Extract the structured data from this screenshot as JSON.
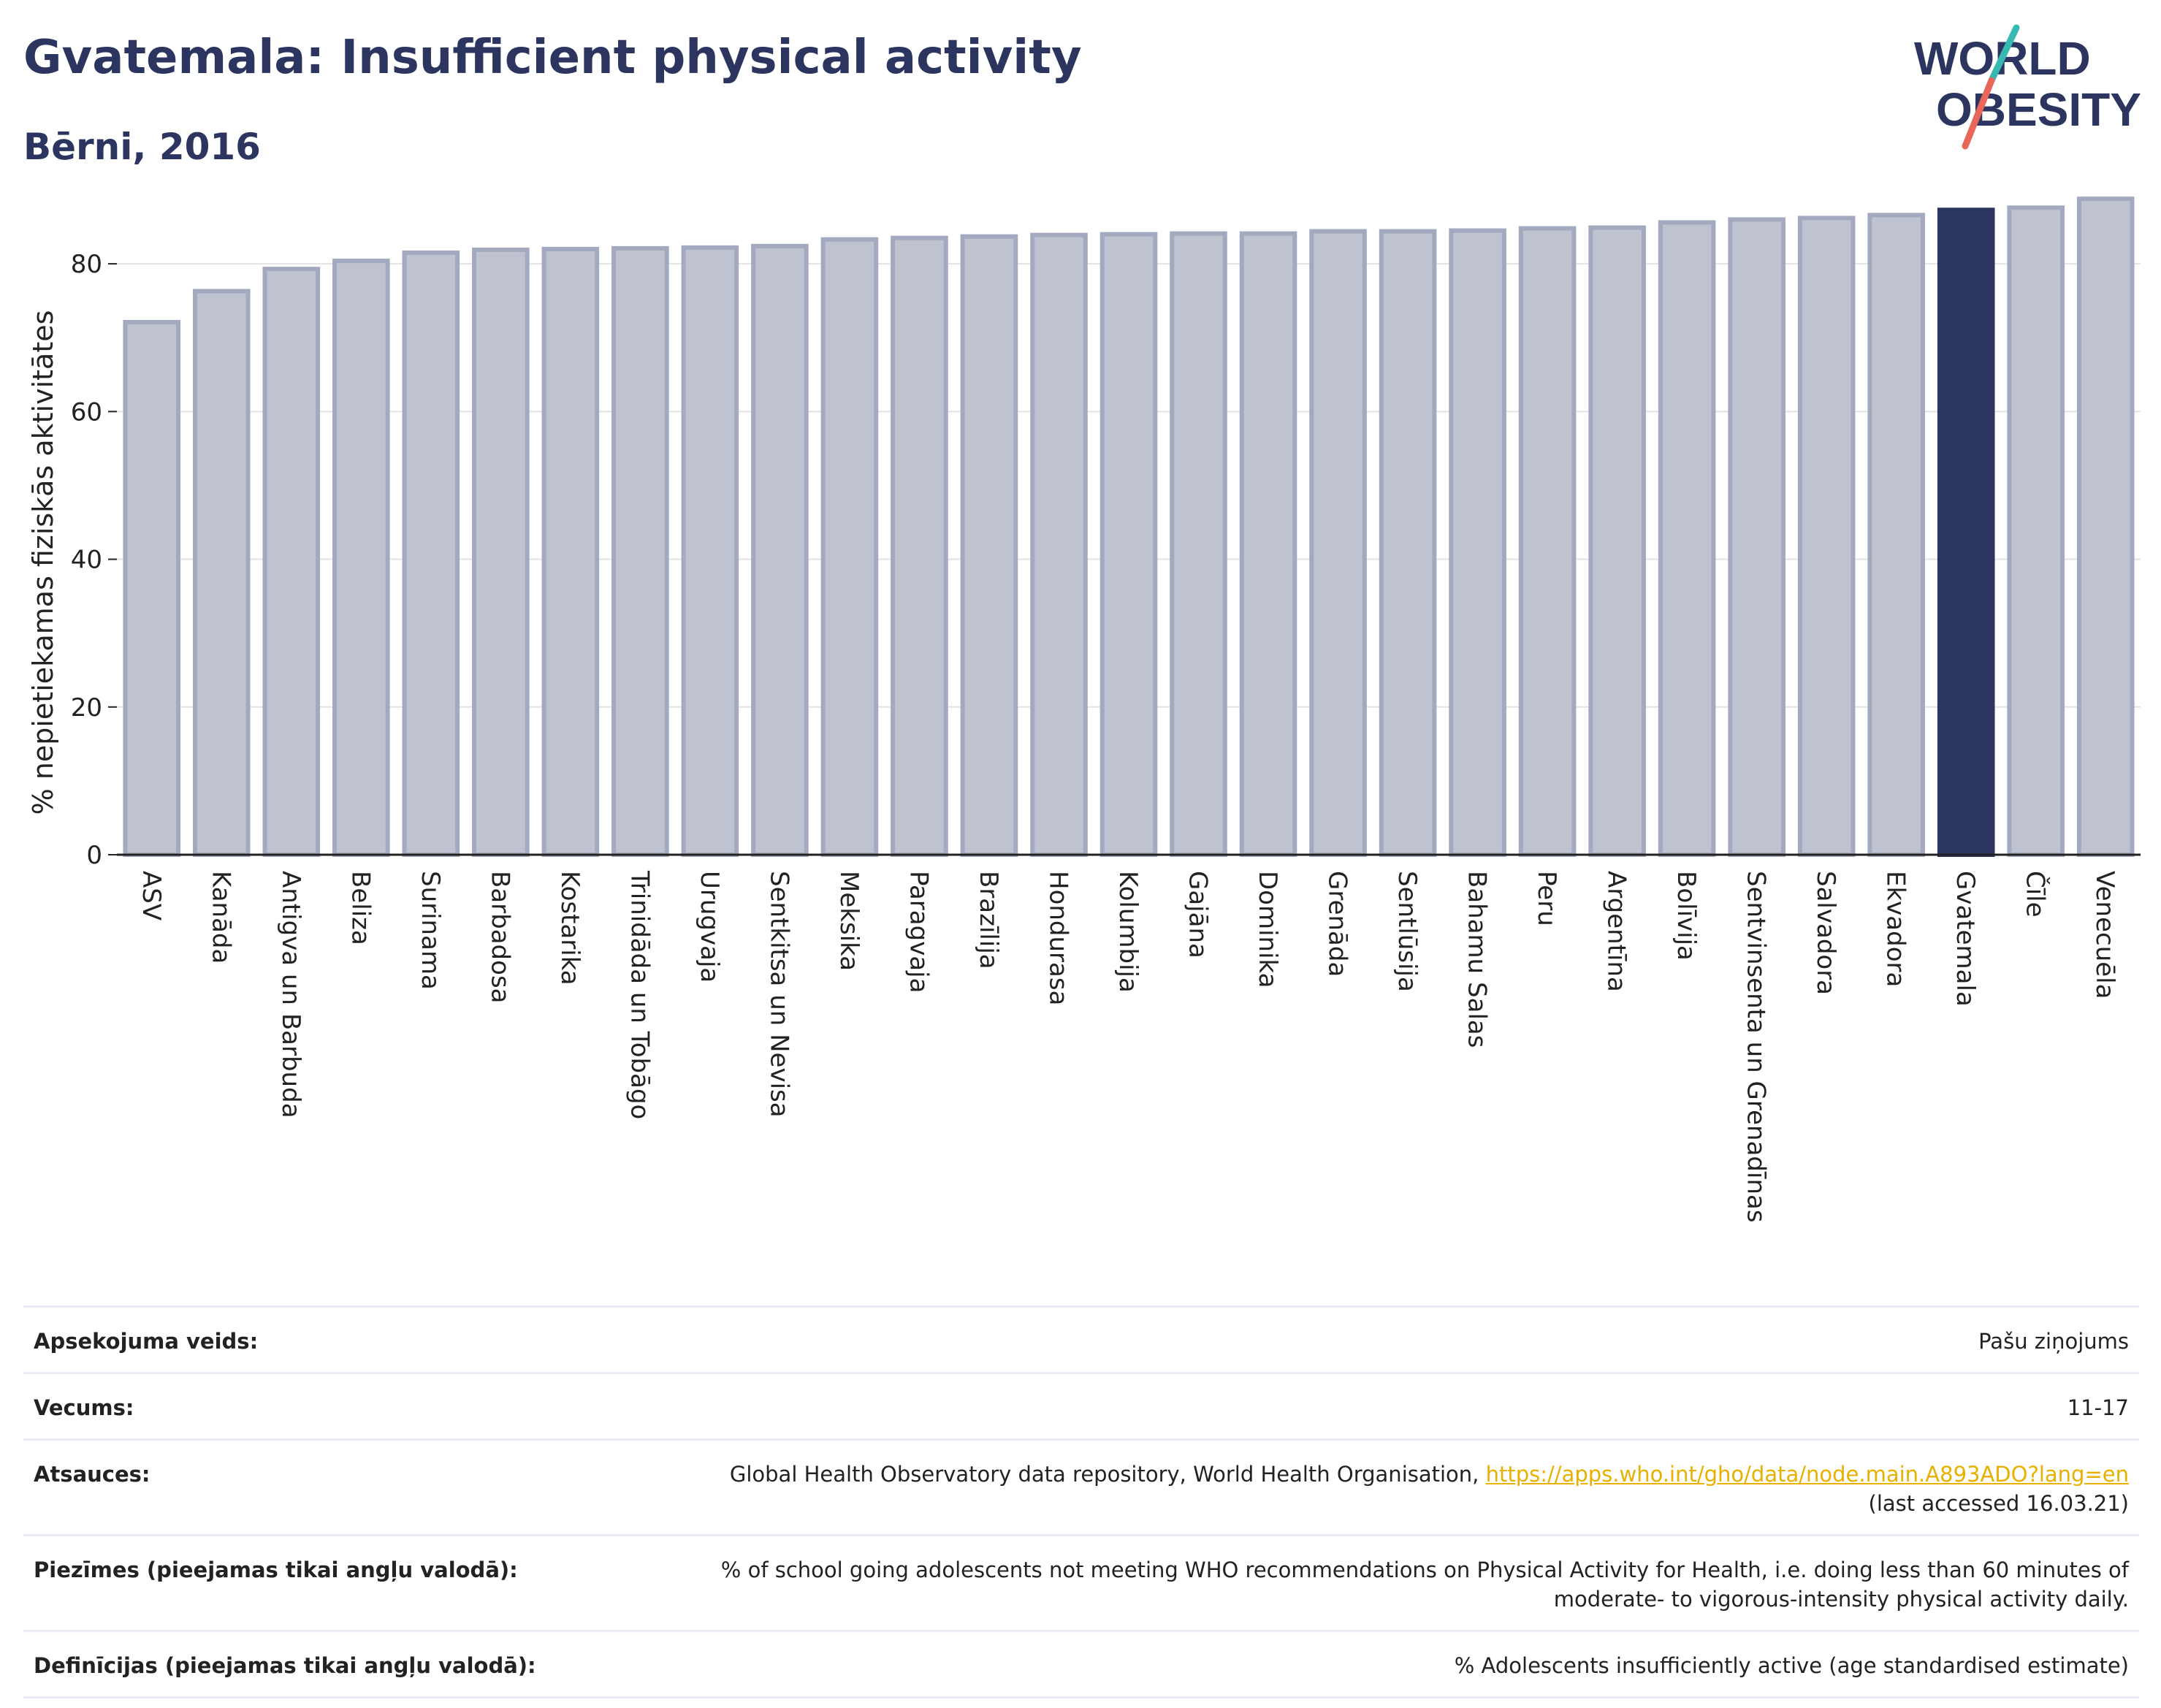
{
  "header": {
    "title": "Gvatemala: Insufficient physical activity",
    "subtitle": "Bērni, 2016"
  },
  "logo": {
    "line1": "WORLD",
    "line2": "OBESITY"
  },
  "colors": {
    "title": "#2b355f",
    "bar_default_fill": "#bfc3d0",
    "bar_default_stroke": "#a3a9bf",
    "bar_highlight": "#2b355f",
    "grid": "#e3e3e3",
    "logo_teal": "#36b9b0",
    "logo_coral": "#e9665a"
  },
  "chart_data": {
    "type": "bar",
    "title": "Gvatemala: Insufficient physical activity",
    "subtitle": "Bērni, 2016",
    "ylabel": "% nepietiekamas fiziskās aktivitātes",
    "xlabel": "",
    "ylim": [
      0,
      90
    ],
    "yticks": [
      0,
      20,
      40,
      60,
      80
    ],
    "grid": true,
    "highlight": "Gvatemala",
    "categories": [
      "ASV",
      "Kanāda",
      "Antigva un Barbuda",
      "Beliza",
      "Surinama",
      "Barbadosa",
      "Kostarika",
      "Trinidāda un Tobāgo",
      "Urugvaja",
      "Sentkitsa un Nevisa",
      "Meksika",
      "Paragvaja",
      "Brazīlija",
      "Hondurasa",
      "Kolumbija",
      "Gajāna",
      "Dominika",
      "Grenāda",
      "Sentlūsija",
      "Bahamu Salas",
      "Peru",
      "Argentīna",
      "Bolīvija",
      "Sentvinsenta un Grenadīnas",
      "Salvadora",
      "Ekvadora",
      "Gvatemala",
      "Čīle",
      "Venecuēla"
    ],
    "values": [
      72.1,
      76.3,
      79.3,
      80.4,
      81.5,
      81.9,
      82.0,
      82.1,
      82.2,
      82.4,
      83.3,
      83.5,
      83.7,
      83.9,
      84.0,
      84.1,
      84.1,
      84.4,
      84.4,
      84.5,
      84.8,
      84.9,
      85.6,
      86.0,
      86.2,
      86.6,
      87.3,
      87.6,
      88.8
    ]
  },
  "info": [
    {
      "label": "Apsekojuma veids:",
      "value": "Pašu ziņojums"
    },
    {
      "label": "Vecums:",
      "value": "11-17"
    },
    {
      "label": "Atsauces:",
      "value": "Global Health Observatory data repository, World Health Organisation, ",
      "link": "https://apps.who.int/gho/data/node.main.A893ADO?lang=en",
      "note": "(last accessed 16.03.21)"
    },
    {
      "label": "Piezīmes (pieejamas tikai angļu valodā):",
      "value": "% of school going adolescents not meeting WHO recommendations on Physical Activity for Health, i.e. doing less than 60 minutes of moderate- to vigorous-intensity physical activity daily."
    },
    {
      "label": "Definīcijas (pieejamas tikai angļu valodā):",
      "value": "% Adolescents insufficiently active (age standardised estimate)"
    }
  ]
}
